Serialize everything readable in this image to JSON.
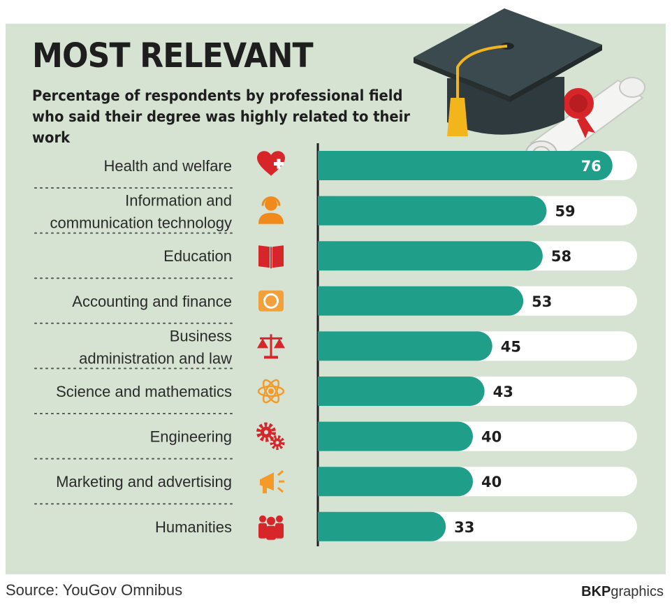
{
  "header": {
    "title": "MOST RELEVANT",
    "subtitle": "Percentage of respondents by professional field who said their degree was highly related to their work"
  },
  "footer": {
    "source": "Source: YouGov Omnibus",
    "credit_bold": "BKP",
    "credit_rest": "graphics"
  },
  "colors": {
    "bar": "#1f9e8a",
    "track": "#ffffff",
    "icon": "#d7262a",
    "icon_finance": "#f2a03a",
    "icon_ict": "#f08a1c",
    "icon_science": "#f39a2a",
    "icon_marketing": "#f39a2a",
    "background": "#d6e3d3"
  },
  "chart_data": {
    "type": "bar",
    "orientation": "horizontal",
    "title": "MOST RELEVANT",
    "subtitle": "Percentage of respondents by professional field who said their degree was highly related to their work",
    "categories": [
      "Health and welfare",
      "Information and communication technology",
      "Education",
      "Accounting and finance",
      "Business administration and law",
      "Science and mathematics",
      "Engineering",
      "Marketing and advertising",
      "Humanities"
    ],
    "category_lines": [
      [
        "Health and welfare"
      ],
      [
        "Information and",
        "communication technology"
      ],
      [
        "Education"
      ],
      [
        "Accounting and finance"
      ],
      [
        "Business",
        "administration and law"
      ],
      [
        "Science and mathematics"
      ],
      [
        "Engineering"
      ],
      [
        "Marketing and advertising"
      ],
      [
        "Humanities"
      ]
    ],
    "icons": [
      "heart-cross-icon",
      "headset-person-icon",
      "open-book-icon",
      "coins-icon",
      "scales-icon",
      "atom-icon",
      "gears-icon",
      "megaphone-icon",
      "group-people-icon"
    ],
    "values": [
      76,
      59,
      58,
      53,
      45,
      43,
      40,
      40,
      33
    ],
    "xlim": [
      0,
      86
    ],
    "grid": false,
    "legend": "none"
  }
}
